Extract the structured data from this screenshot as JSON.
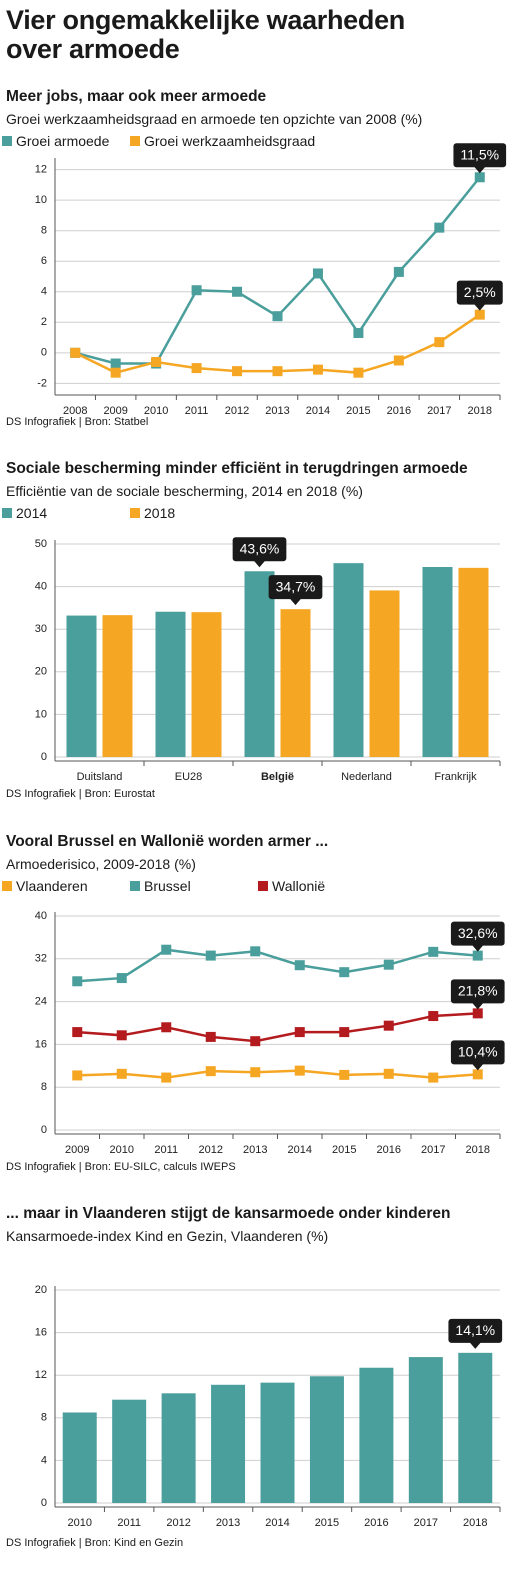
{
  "title": "Vier ongemakkelijke waarheden over armoede",
  "chart_data": [
    {
      "type": "line",
      "title": "Meer jobs, maar ook meer armoede",
      "subtitle": "Groei werkzaamheidsgraad en armoede ten opzichte van 2008 (%)",
      "categories": [
        "2008",
        "2009",
        "2010",
        "2011",
        "2012",
        "2013",
        "2014",
        "2015",
        "2016",
        "2017",
        "2018"
      ],
      "series": [
        {
          "name": "Groei armoede",
          "color": "#4a9e9b",
          "values": [
            0,
            -0.7,
            -0.7,
            4.1,
            4.0,
            2.4,
            5.2,
            1.3,
            5.3,
            8.2,
            11.5
          ],
          "value_labels": [
            null,
            null,
            null,
            null,
            null,
            null,
            null,
            null,
            null,
            null,
            "11,5%"
          ]
        },
        {
          "name": "Groei werkzaamheidsgraad",
          "color": "#f5a623",
          "values": [
            0,
            -1.3,
            -0.6,
            -1.0,
            -1.2,
            -1.2,
            -1.1,
            -1.3,
            -0.5,
            0.7,
            2.5
          ],
          "value_labels": [
            null,
            null,
            null,
            null,
            null,
            null,
            null,
            null,
            null,
            null,
            "2,5%"
          ]
        }
      ],
      "ylim": [
        -2.5,
        12.5
      ],
      "yticks": [
        -2,
        0,
        2,
        4,
        6,
        8,
        10,
        12
      ],
      "grid": true,
      "source": "DS Infografiek | Bron: Statbel"
    },
    {
      "type": "bar",
      "title": "Sociale bescherming minder efficiënt in terugdringen armoede",
      "subtitle": "Efficiëntie van de sociale bescherming, 2014 en 2018 (%)",
      "categories": [
        "Duitsland",
        "EU28",
        "België",
        "Nederland",
        "Frankrijk"
      ],
      "highlight": 2,
      "series": [
        {
          "name": "2014",
          "color": "#4a9e9b",
          "values": [
            33.2,
            34.1,
            43.6,
            45.5,
            44.6
          ],
          "value_labels": [
            null,
            null,
            "43,6%",
            null,
            null
          ]
        },
        {
          "name": "2018",
          "color": "#f5a623",
          "values": [
            33.3,
            34.0,
            34.7,
            39.1,
            44.4
          ],
          "value_labels": [
            null,
            null,
            "34,7%",
            null,
            null
          ]
        }
      ],
      "ylim": [
        0,
        50
      ],
      "yticks": [
        0,
        10,
        20,
        30,
        40,
        50
      ],
      "grid": true,
      "source": "DS Infografiek | Bron: Eurostat"
    },
    {
      "type": "line",
      "title": "Vooral Brussel en Wallonië worden armer ...",
      "subtitle": "Armoederisico, 2009-2018 (%)",
      "categories": [
        "2009",
        "2010",
        "2011",
        "2012",
        "2013",
        "2014",
        "2015",
        "2016",
        "2017",
        "2018"
      ],
      "series": [
        {
          "name": "Vlaanderen",
          "color": "#f5a623",
          "values": [
            10.2,
            10.5,
            9.8,
            11.0,
            10.8,
            11.1,
            10.3,
            10.5,
            9.8,
            10.4
          ],
          "value_labels": [
            null,
            null,
            null,
            null,
            null,
            null,
            null,
            null,
            null,
            "10,4%"
          ]
        },
        {
          "name": "Brussel",
          "color": "#4a9e9b",
          "values": [
            27.8,
            28.4,
            33.7,
            32.6,
            33.4,
            30.8,
            29.5,
            30.9,
            33.3,
            32.6
          ],
          "value_labels": [
            null,
            null,
            null,
            null,
            null,
            null,
            null,
            null,
            null,
            "32,6%"
          ]
        },
        {
          "name": "Wallonië",
          "color": "#b31b1f",
          "values": [
            18.3,
            17.7,
            19.2,
            17.4,
            16.6,
            18.3,
            18.3,
            19.5,
            21.3,
            21.8
          ],
          "value_labels": [
            null,
            null,
            null,
            null,
            null,
            null,
            null,
            null,
            null,
            "21,8%"
          ]
        }
      ],
      "ylim": [
        0,
        40
      ],
      "yticks": [
        0,
        8,
        16,
        24,
        32,
        40
      ],
      "grid": true,
      "source": "DS Infografiek | Bron:  EU-SILC, calculs IWEPS"
    },
    {
      "type": "bar",
      "title": "... maar in Vlaanderen stijgt de kansarmoede onder kinderen",
      "subtitle": "Kansarmoede-index Kind en Gezin, Vlaanderen (%)",
      "categories": [
        "2010",
        "2011",
        "2012",
        "2013",
        "2014",
        "2015",
        "2016",
        "2017",
        "2018"
      ],
      "color": "#4a9e9b",
      "values": [
        8.5,
        9.7,
        10.3,
        11.1,
        11.3,
        11.9,
        12.7,
        13.7,
        14.1
      ],
      "value_labels": [
        null,
        null,
        null,
        null,
        null,
        null,
        null,
        null,
        "14,1%"
      ],
      "ylim": [
        0,
        20
      ],
      "yticks": [
        0,
        4,
        8,
        12,
        16,
        20
      ],
      "grid": true,
      "source": "DS Infografiek | Bron: Kind en Gezin"
    }
  ]
}
